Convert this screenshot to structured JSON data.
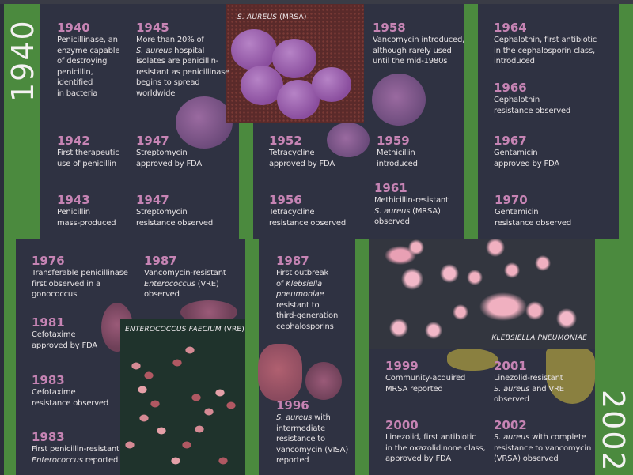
{
  "colors": {
    "green": "#4b8a3e",
    "panel": "#2f3242",
    "year": "#c684b4",
    "text": "#e6e2e4"
  },
  "top": {
    "era_label": "1940",
    "image_caption": {
      "italic": "S. AUREUS",
      "rest": " (MRSA)"
    },
    "entries": [
      {
        "year": "1940",
        "parts": [
          {
            "text": "Penicillinase, an\nenzyme capable\nof destroying\npenicillin,\nidentified\nin bacteria"
          }
        ]
      },
      {
        "year": "1945",
        "parts": [
          {
            "text": "More than 20% of\n"
          },
          {
            "text": "S. aureus",
            "italic": true
          },
          {
            "text": " hospital\nisolates are penicillin-\nresistant as penicillinase\nbegins to spread\nworldwide"
          }
        ]
      },
      {
        "year": "1942",
        "parts": [
          {
            "text": "First therapeutic\nuse of penicillin"
          }
        ]
      },
      {
        "year": "1947",
        "parts": [
          {
            "text": "Streptomycin\napproved by FDA"
          }
        ]
      },
      {
        "year": "1943",
        "parts": [
          {
            "text": "Penicillin\nmass-produced"
          }
        ]
      },
      {
        "year": "1947",
        "parts": [
          {
            "text": "Streptomycin\nresistance observed"
          }
        ]
      },
      {
        "year": "1952",
        "parts": [
          {
            "text": "Tetracycline\napproved by FDA"
          }
        ]
      },
      {
        "year": "1956",
        "parts": [
          {
            "text": "Tetracycline\nresistance observed"
          }
        ]
      },
      {
        "year": "1958",
        "parts": [
          {
            "text": "Vancomycin introduced,\nalthough rarely used\nuntil the mid-1980s"
          }
        ]
      },
      {
        "year": "1959",
        "parts": [
          {
            "text": "Methicillin\nintroduced"
          }
        ]
      },
      {
        "year": "1961",
        "parts": [
          {
            "text": "Methicillin-resistant\n"
          },
          {
            "text": "S. aureus",
            "italic": true
          },
          {
            "text": " (MRSA)\nobserved"
          }
        ]
      },
      {
        "year": "1964",
        "parts": [
          {
            "text": "Cephalothin, first antibiotic\nin the cephalosporin class,\nintroduced"
          }
        ]
      },
      {
        "year": "1966",
        "parts": [
          {
            "text": "Cephalothin\nresistance observed"
          }
        ]
      },
      {
        "year": "1967",
        "parts": [
          {
            "text": "Gentamicin\napproved by FDA"
          }
        ]
      },
      {
        "year": "1970",
        "parts": [
          {
            "text": "Gentamicin\nresistance observed"
          }
        ]
      }
    ]
  },
  "bottom": {
    "era_label": "2002",
    "image_caption_vre": {
      "italic": "ENTEROCOCCUS FAECIUM",
      "rest": " (VRE)"
    },
    "image_caption_kp": {
      "italic": "KLEBSIELLA PNEUMONIAE",
      "rest": ""
    },
    "entries": [
      {
        "year": "1976",
        "parts": [
          {
            "text": "Transferable penicillinase\nfirst observed in a\ngonococcus"
          }
        ]
      },
      {
        "year": "1987",
        "parts": [
          {
            "text": "Vancomycin-resistant\n"
          },
          {
            "text": "Enterococcus",
            "italic": true
          },
          {
            "text": " (VRE)\nobserved"
          }
        ]
      },
      {
        "year": "1981",
        "parts": [
          {
            "text": "Cefotaxime\napproved by FDA"
          }
        ]
      },
      {
        "year": "1983",
        "parts": [
          {
            "text": "Cefotaxime\nresistance observed"
          }
        ]
      },
      {
        "year": "1983",
        "parts": [
          {
            "text": "First penicillin-resistant\n"
          },
          {
            "text": "Enterococcus",
            "italic": true
          },
          {
            "text": " reported"
          }
        ]
      },
      {
        "year": "1987",
        "parts": [
          {
            "text": "First outbreak\nof "
          },
          {
            "text": "Klebsiella\npneumoniae",
            "italic": true
          },
          {
            "text": "\nresistant to\nthird-generation\ncephalosporins"
          }
        ]
      },
      {
        "year": "1996",
        "parts": [
          {
            "text": "S. aureus",
            "italic": true
          },
          {
            "text": " with\nintermediate\nresistance to\nvancomycin (VISA)\nreported"
          }
        ]
      },
      {
        "year": "1999",
        "parts": [
          {
            "text": "Community-acquired\nMRSA reported"
          }
        ]
      },
      {
        "year": "2001",
        "parts": [
          {
            "text": "Linezolid-resistant\n"
          },
          {
            "text": "S. aureus",
            "italic": true
          },
          {
            "text": " and VRE\nobserved"
          }
        ]
      },
      {
        "year": "2000",
        "parts": [
          {
            "text": "Linezolid, first antibiotic\nin the oxazolidinone class,\napproved by FDA"
          }
        ]
      },
      {
        "year": "2002",
        "parts": [
          {
            "text": "S. aureus",
            "italic": true
          },
          {
            "text": " with complete\nresistance to vancomycin\n(VRSA) observed"
          }
        ]
      }
    ]
  }
}
